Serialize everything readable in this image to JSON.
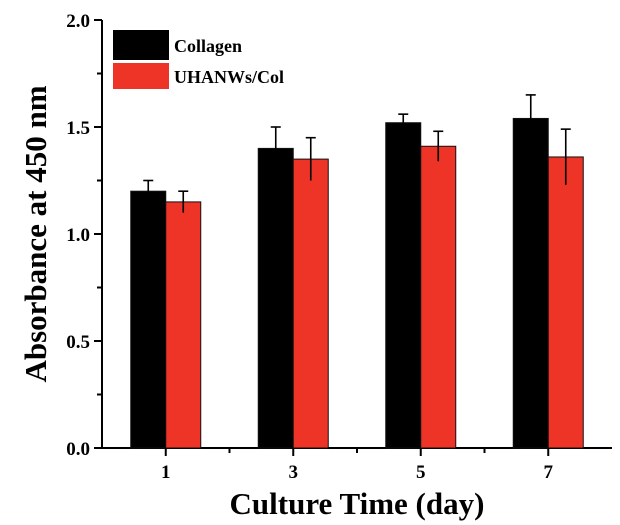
{
  "chart_data": {
    "type": "bar",
    "title": "",
    "xlabel": "Culture Time (day)",
    "ylabel": "Absorbance at 450 nm",
    "categories": [
      "1",
      "3",
      "5",
      "7"
    ],
    "ylim": [
      0.0,
      2.0
    ],
    "yticks": [
      "0.0",
      "0.5",
      "1.0",
      "1.5",
      "2.0"
    ],
    "grid": false,
    "legend_position": "top-left",
    "series": [
      {
        "name": "Collagen",
        "color": "#000000",
        "values": [
          1.2,
          1.4,
          1.52,
          1.54
        ],
        "errors": [
          0.05,
          0.1,
          0.04,
          0.11
        ]
      },
      {
        "name": "UHANWs/Col",
        "color": "#ee3327",
        "values": [
          1.15,
          1.35,
          1.41,
          1.36
        ],
        "errors": [
          0.05,
          0.1,
          0.07,
          0.13
        ]
      }
    ]
  }
}
